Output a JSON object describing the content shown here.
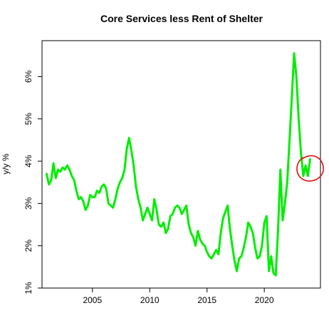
{
  "chart_data": {
    "type": "line",
    "title": "Core Services less Rent of Shelter",
    "xlabel": "",
    "ylabel": "y/y %",
    "xlim": [
      2000.6,
      2024.9
    ],
    "ylim": [
      1.0,
      6.85
    ],
    "x_ticks": [
      2005,
      2010,
      2015,
      2020
    ],
    "x_tick_labels": [
      "2005",
      "2010",
      "2015",
      "2020"
    ],
    "y_ticks": [
      1,
      2,
      3,
      4,
      5,
      6
    ],
    "y_tick_labels": [
      "1%",
      "2%",
      "3%",
      "4%",
      "5%",
      "6%"
    ],
    "grid": false,
    "legend": "none",
    "series": [
      {
        "color": "#00ee00",
        "x": [
          2001.0,
          2001.2,
          2001.4,
          2001.6,
          2001.8,
          2002.0,
          2002.2,
          2002.4,
          2002.6,
          2002.8,
          2003.0,
          2003.2,
          2003.4,
          2003.6,
          2003.8,
          2004.0,
          2004.2,
          2004.4,
          2004.6,
          2004.8,
          2005.0,
          2005.2,
          2005.4,
          2005.6,
          2005.8,
          2006.0,
          2006.2,
          2006.4,
          2006.6,
          2006.8,
          2007.0,
          2007.2,
          2007.4,
          2007.6,
          2007.8,
          2008.0,
          2008.2,
          2008.4,
          2008.6,
          2008.8,
          2009.0,
          2009.2,
          2009.4,
          2009.6,
          2009.8,
          2010.0,
          2010.2,
          2010.4,
          2010.6,
          2010.8,
          2011.0,
          2011.2,
          2011.4,
          2011.6,
          2011.8,
          2012.0,
          2012.2,
          2012.4,
          2012.6,
          2012.8,
          2013.0,
          2013.2,
          2013.4,
          2013.6,
          2013.8,
          2014.0,
          2014.2,
          2014.4,
          2014.6,
          2014.8,
          2015.0,
          2015.2,
          2015.4,
          2015.6,
          2015.8,
          2016.0,
          2016.2,
          2016.4,
          2016.6,
          2016.8,
          2017.0,
          2017.2,
          2017.4,
          2017.6,
          2017.8,
          2018.0,
          2018.2,
          2018.4,
          2018.6,
          2018.8,
          2019.0,
          2019.2,
          2019.4,
          2019.6,
          2019.8,
          2020.0,
          2020.2,
          2020.4,
          2020.6,
          2020.8,
          2021.0,
          2021.2,
          2021.4,
          2021.6,
          2021.8,
          2022.0,
          2022.2,
          2022.4,
          2022.6,
          2022.8,
          2023.0,
          2023.2,
          2023.4,
          2023.6,
          2023.8,
          2024.0
        ],
        "values": [
          3.7,
          3.45,
          3.55,
          3.95,
          3.6,
          3.8,
          3.75,
          3.85,
          3.8,
          3.9,
          3.8,
          3.65,
          3.55,
          3.3,
          3.1,
          3.15,
          3.05,
          2.85,
          2.95,
          3.2,
          3.15,
          3.15,
          3.3,
          3.25,
          3.4,
          3.45,
          3.35,
          3.0,
          2.95,
          2.9,
          3.1,
          3.35,
          3.5,
          3.6,
          3.8,
          4.3,
          4.55,
          4.25,
          3.9,
          3.4,
          3.1,
          2.9,
          2.6,
          2.75,
          2.9,
          2.75,
          2.6,
          3.1,
          2.85,
          2.5,
          2.45,
          2.55,
          2.3,
          2.4,
          2.7,
          2.75,
          2.9,
          2.95,
          2.9,
          2.75,
          2.85,
          2.95,
          2.5,
          2.3,
          2.2,
          2.0,
          2.35,
          2.15,
          2.05,
          2.0,
          1.85,
          1.75,
          1.7,
          1.8,
          1.9,
          1.8,
          2.3,
          2.65,
          2.8,
          2.95,
          2.4,
          2.0,
          1.65,
          1.4,
          1.7,
          1.75,
          1.95,
          2.2,
          2.55,
          2.45,
          2.3,
          1.95,
          1.7,
          1.75,
          2.0,
          2.55,
          2.7,
          1.4,
          1.75,
          1.35,
          1.3,
          2.4,
          3.8,
          2.6,
          3.0,
          3.5,
          4.5,
          5.5,
          6.55,
          6.0,
          5.0,
          4.2,
          3.65,
          3.9,
          3.65,
          4.05
        ]
      }
    ],
    "highlight": {
      "type": "circle",
      "color": "#dd1111",
      "around_x": 2023.9,
      "around_y": 3.85
    }
  }
}
